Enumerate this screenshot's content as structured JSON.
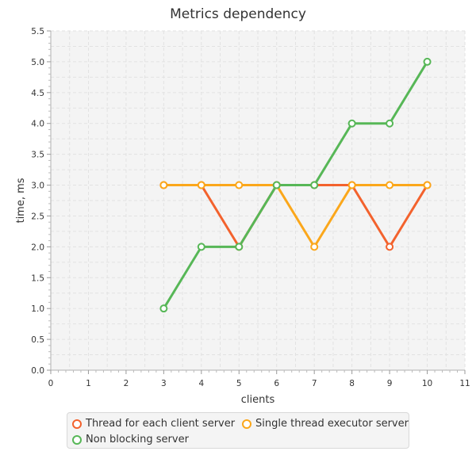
{
  "chart_data": {
    "type": "line",
    "title": "Metrics dependency",
    "xlabel": "clients",
    "ylabel": "time, ms",
    "xlim": [
      0,
      11
    ],
    "ylim": [
      0.0,
      5.5
    ],
    "x_ticks": [
      "0",
      "1",
      "2",
      "3",
      "4",
      "5",
      "6",
      "7",
      "8",
      "9",
      "10",
      "11"
    ],
    "y_ticks": [
      "0.0",
      "0.5",
      "1.0",
      "1.5",
      "2.0",
      "2.5",
      "3.0",
      "3.5",
      "4.0",
      "4.5",
      "5.0",
      "5.5"
    ],
    "grid": true,
    "legend_position": "bottom",
    "x": [
      3,
      4,
      5,
      6,
      7,
      8,
      9,
      10
    ],
    "series": [
      {
        "name": "Thread for each client server",
        "color": "#f3622d",
        "values": [
          3,
          3,
          2,
          3,
          3,
          3,
          2,
          3
        ]
      },
      {
        "name": "Single thread executor server",
        "color": "#fba71b",
        "values": [
          3,
          3,
          3,
          3,
          2,
          3,
          3,
          3
        ]
      },
      {
        "name": "Non blocking server",
        "color": "#57b757",
        "values": [
          1,
          2,
          2,
          3,
          3,
          4,
          4,
          5
        ]
      }
    ]
  }
}
